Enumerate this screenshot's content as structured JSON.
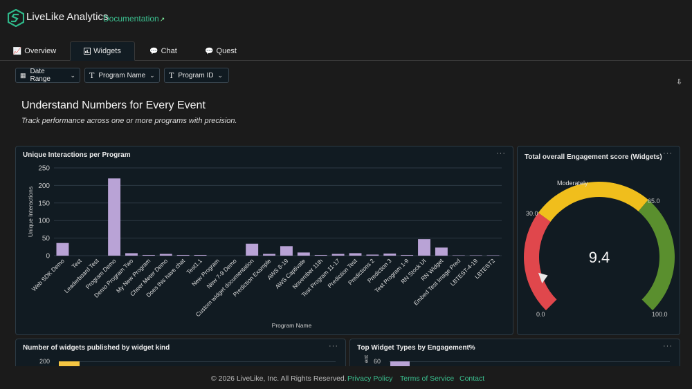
{
  "header": {
    "app_title": "LiveLike Analytics",
    "doc_link": "Documentation"
  },
  "tabs": [
    {
      "label": "Overview",
      "icon": "line-chart-icon",
      "active": false
    },
    {
      "label": "Widgets",
      "icon": "bar-chart-icon",
      "active": true
    },
    {
      "label": "Chat",
      "icon": "chat-icon",
      "active": false
    },
    {
      "label": "Quest",
      "icon": "chat-icon",
      "active": false
    }
  ],
  "filters": [
    {
      "label": "Date Range",
      "icon": "calendar-icon"
    },
    {
      "label": "Program Name",
      "icon": "text-type-icon"
    },
    {
      "label": "Program ID",
      "icon": "text-type-icon"
    }
  ],
  "page": {
    "title": "Understand Numbers for Every Event",
    "subtitle": "Track performance across one or more programs with precision."
  },
  "cards": {
    "interactions_title": "Unique Interactions per Program",
    "engagement_title": "Total overall Engagement score (Widgets)",
    "widgets_kind_title": "Number of widgets published by widget kind",
    "top_types_title": "Top Widget Types by Engagement%",
    "menu": "···"
  },
  "chart_data": [
    {
      "type": "bar",
      "title": "Unique Interactions per Program",
      "xlabel": "Program Name",
      "ylabel": "Unique Interactions",
      "ylim": [
        0,
        250
      ],
      "yticks": [
        0,
        50,
        100,
        150,
        200,
        250
      ],
      "grid": true,
      "color": "#b9a3d6",
      "categories": [
        "Web SDK Demo",
        "Test",
        "Leaderboard Test",
        "Program Demo",
        "Demo Program Two",
        "My New Program",
        "Cheer Meter Demo",
        "Does this have chat",
        "Test1.1",
        "New Program",
        "New 7-9 Demo",
        "Custom widget documentation",
        "Prediction Example",
        "AWS 8-19",
        "AWS Captivate",
        "November 11th",
        "Test Program 11-17",
        "Prediction Test",
        "Predictions 2",
        "Prediction 3",
        "Test Program 1-9",
        "RN Stock UI",
        "RN Widget",
        "Embed Test Image Pred",
        "LBTEST-4-19",
        "LBTEST2"
      ],
      "values": [
        36,
        0,
        0,
        220,
        7,
        2,
        5,
        2,
        2,
        0,
        0,
        34,
        5,
        27,
        9,
        2,
        5,
        7,
        3,
        6,
        2,
        47,
        23,
        1,
        1,
        1
      ]
    },
    {
      "type": "gauge",
      "title": "Total overall Engagement score (Widgets)",
      "value": 9.4,
      "min": 0.0,
      "max": 100.0,
      "thresholds": [
        30.0,
        65.0
      ],
      "band_label": "Moderately",
      "labels": {
        "min": "0.0",
        "t1": "30.0",
        "t2": "65.0",
        "max": "100.0",
        "value": "9.4"
      },
      "colors": {
        "low": "#e0474c",
        "mid": "#f0be1c",
        "high": "#5a8f2e"
      }
    },
    {
      "type": "bar",
      "title": "Number of widgets published by widget kind",
      "yticks": [
        200
      ],
      "color": "#f5c542"
    },
    {
      "type": "bar",
      "title": "Top Widget Types by Engagement%",
      "yticks": [
        60
      ],
      "ylabel_fragment": "ent",
      "color": "#b9a3d6"
    }
  ],
  "footer": {
    "copyright": "© 2026 LiveLike, Inc. All Rights Reserved.",
    "privacy": "Privacy Policy",
    "terms": "Terms of Service",
    "contact": "Contact"
  }
}
